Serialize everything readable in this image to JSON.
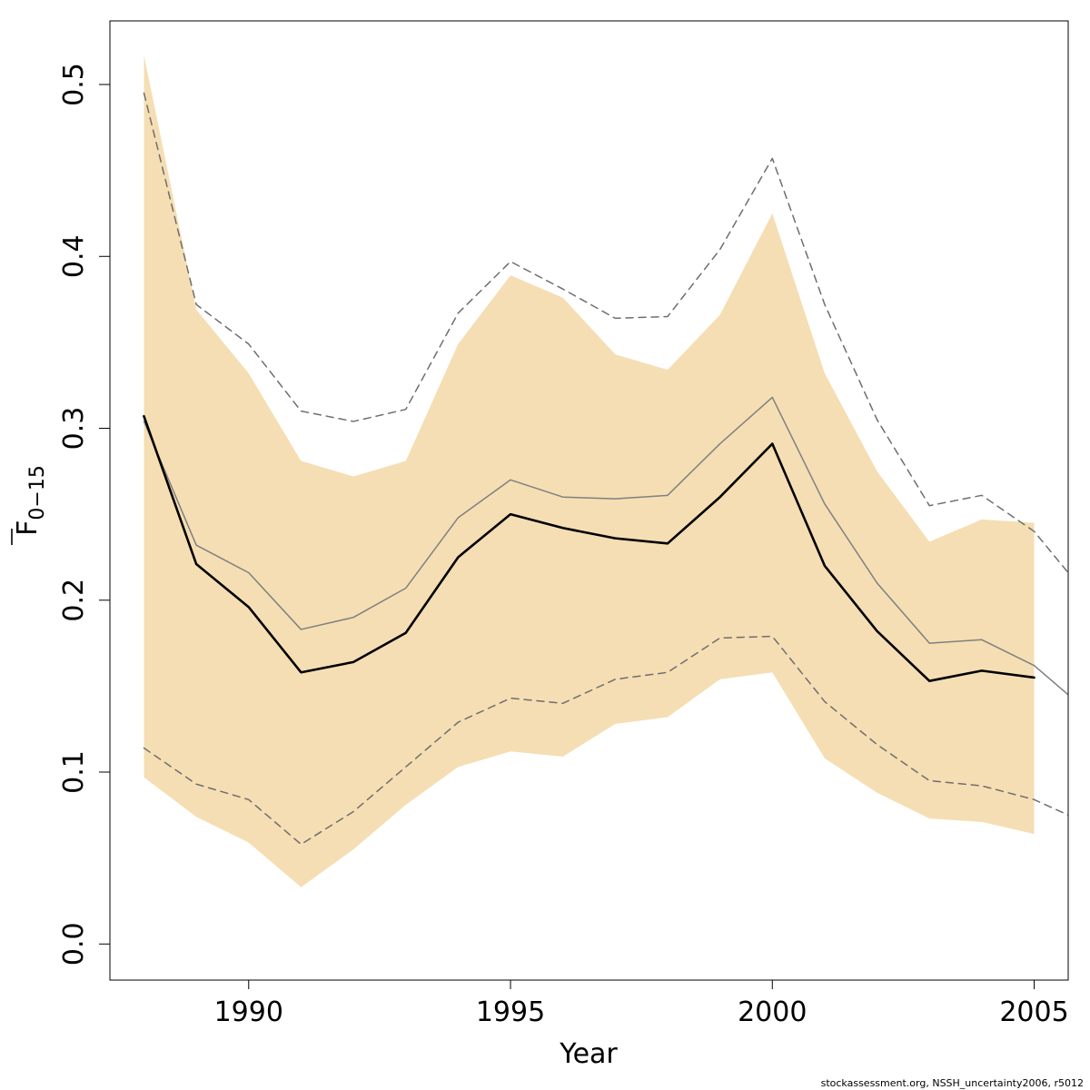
{
  "chart_data": {
    "type": "line",
    "title": "",
    "xlabel": "Year",
    "ylabel": {
      "main": "F",
      "subscript": "0−15",
      "overline": true
    },
    "xlim": [
      1987.35,
      2005.65
    ],
    "ylim": [
      -0.021,
      0.537
    ],
    "x_ticks": [
      1990,
      1995,
      2000,
      2005
    ],
    "x_tick_labels": [
      "1990",
      "1995",
      "2000",
      "2005"
    ],
    "y_ticks": [
      0.0,
      0.1,
      0.2,
      0.3,
      0.4,
      0.5
    ],
    "y_tick_labels": [
      "0.0",
      "0.1",
      "0.2",
      "0.3",
      "0.4",
      "0.5"
    ],
    "grid": false,
    "band": {
      "color": "#f5deb3",
      "x": [
        1988,
        1989,
        1990,
        1991,
        1992,
        1993,
        1994,
        1995,
        1996,
        1997,
        1998,
        1999,
        2000,
        2001,
        2002,
        2003,
        2004,
        2005
      ],
      "upper": [
        0.517,
        0.369,
        0.332,
        0.281,
        0.272,
        0.281,
        0.349,
        0.389,
        0.376,
        0.343,
        0.334,
        0.366,
        0.425,
        0.332,
        0.275,
        0.234,
        0.247,
        0.245
      ],
      "lower": [
        0.097,
        0.074,
        0.059,
        0.033,
        0.055,
        0.081,
        0.103,
        0.112,
        0.109,
        0.128,
        0.132,
        0.154,
        0.158,
        0.108,
        0.088,
        0.073,
        0.071,
        0.064
      ]
    },
    "series": [
      {
        "style": "solid-thick",
        "color": "#000000",
        "x": [
          1988,
          1989,
          1990,
          1991,
          1992,
          1993,
          1994,
          1995,
          1996,
          1997,
          1998,
          1999,
          2000,
          2001,
          2002,
          2003,
          2004,
          2005
        ],
        "values": [
          0.307,
          0.221,
          0.196,
          0.158,
          0.164,
          0.181,
          0.225,
          0.25,
          0.242,
          0.236,
          0.233,
          0.26,
          0.291,
          0.22,
          0.182,
          0.153,
          0.159,
          0.155
        ]
      },
      {
        "style": "solid-thin",
        "color": "#808080",
        "x": [
          1988,
          1989,
          1990,
          1991,
          1992,
          1993,
          1994,
          1995,
          1996,
          1997,
          1998,
          1999,
          2000,
          2001,
          2002,
          2003,
          2004,
          2005,
          2005.65
        ],
        "values": [
          0.304,
          0.232,
          0.216,
          0.183,
          0.19,
          0.207,
          0.248,
          0.27,
          0.26,
          0.259,
          0.261,
          0.291,
          0.318,
          0.256,
          0.21,
          0.175,
          0.177,
          0.162,
          0.145
        ]
      },
      {
        "style": "dashed",
        "color": "#6e6e6e",
        "x": [
          1988,
          1989,
          1990,
          1991,
          1992,
          1993,
          1994,
          1995,
          1996,
          1997,
          1998,
          1999,
          2000,
          2001,
          2002,
          2003,
          2004,
          2005,
          2005.65
        ],
        "values": [
          0.495,
          0.372,
          0.349,
          0.31,
          0.304,
          0.311,
          0.367,
          0.397,
          0.381,
          0.364,
          0.365,
          0.404,
          0.457,
          0.372,
          0.305,
          0.255,
          0.261,
          0.24,
          0.216
        ]
      },
      {
        "style": "dashed",
        "color": "#6e6e6e",
        "x": [
          1988,
          1989,
          1990,
          1991,
          1992,
          1993,
          1994,
          1995,
          1996,
          1997,
          1998,
          1999,
          2000,
          2001,
          2002,
          2003,
          2004,
          2005,
          2005.65
        ],
        "values": [
          0.114,
          0.093,
          0.084,
          0.058,
          0.077,
          0.103,
          0.129,
          0.143,
          0.14,
          0.154,
          0.158,
          0.178,
          0.179,
          0.141,
          0.116,
          0.095,
          0.092,
          0.084,
          0.075
        ]
      }
    ]
  },
  "footer": {
    "credit": "stockassessment.org, NSSH_uncertainty2006, r5012"
  }
}
